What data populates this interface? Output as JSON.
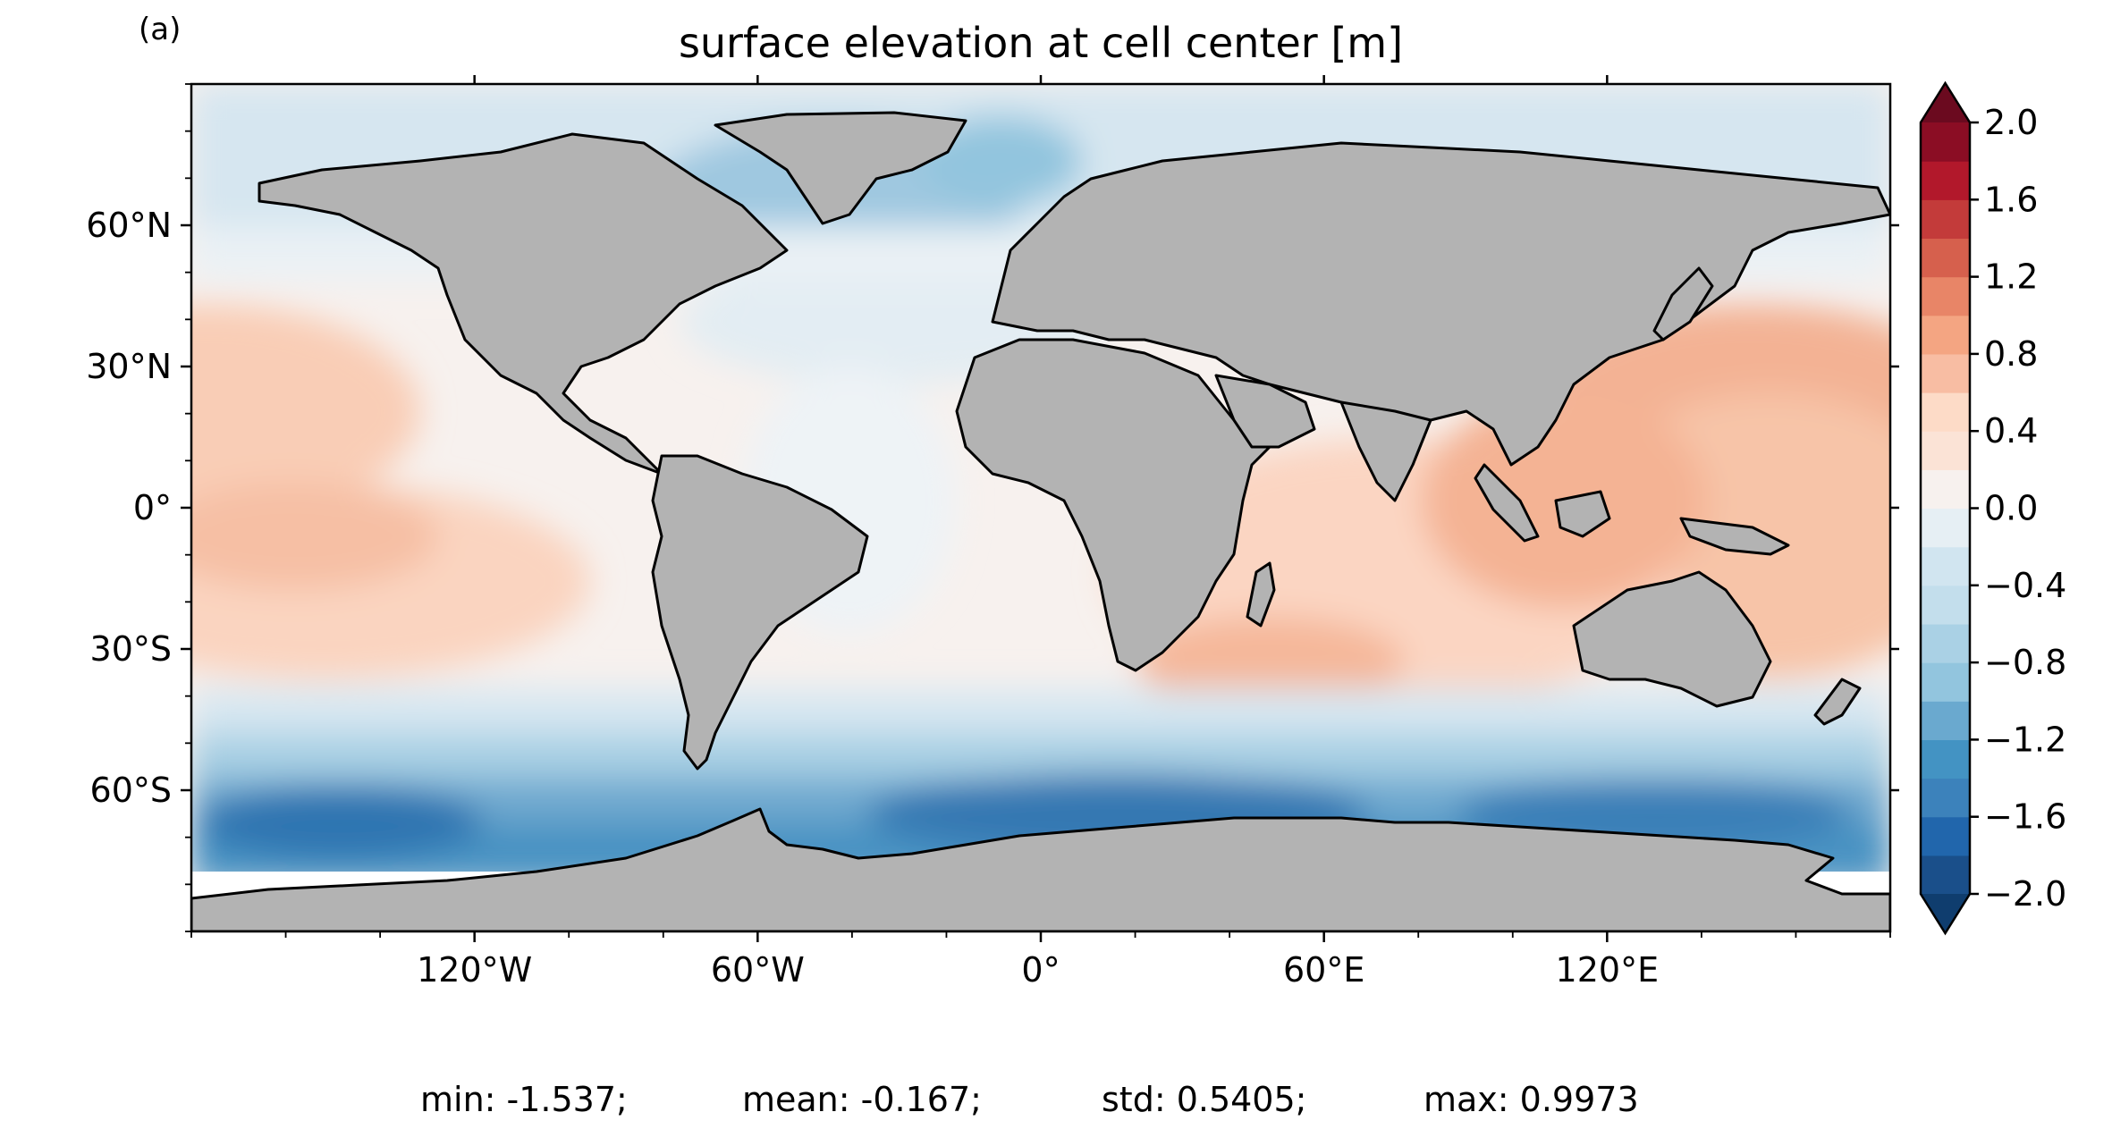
{
  "panel_label": "(a)",
  "title": "surface elevation at cell center [m]",
  "map": {
    "projection": "PlateCarree",
    "longitude_range": [
      -180,
      180
    ],
    "latitude_range": [
      -90,
      90
    ],
    "land_color": "#b3b3b3",
    "coastline_color": "#000000",
    "lon_ticks": [
      {
        "value": -120,
        "label": "120°W"
      },
      {
        "value": -60,
        "label": "60°W"
      },
      {
        "value": 0,
        "label": "0°"
      },
      {
        "value": 60,
        "label": "60°E"
      },
      {
        "value": 120,
        "label": "120°E"
      }
    ],
    "lat_ticks": [
      {
        "value": 60,
        "label": "60°N"
      },
      {
        "value": 30,
        "label": "30°N"
      },
      {
        "value": 0,
        "label": "0°"
      },
      {
        "value": -30,
        "label": "30°S"
      },
      {
        "value": -60,
        "label": "60°S"
      }
    ],
    "field_summary": {
      "variable": "surface elevation at cell center",
      "units": "m",
      "regions": [
        {
          "region": "Southern Ocean (Antarctic Circumpolar Current)",
          "value_range": [
            -1.6,
            -1.2
          ]
        },
        {
          "region": "Subpolar North Atlantic / Labrador Sea",
          "value_range": [
            -0.8,
            -0.4
          ]
        },
        {
          "region": "Arctic Ocean",
          "value_range": [
            -0.4,
            -0.2
          ]
        },
        {
          "region": "Subtropical North Pacific gyre",
          "value_range": [
            0.2,
            0.4
          ]
        },
        {
          "region": "Western Pacific warm pool / Kuroshio",
          "value_range": [
            0.6,
            0.9
          ]
        },
        {
          "region": "Indian Ocean",
          "value_range": [
            0.2,
            0.5
          ]
        },
        {
          "region": "Agulhas retroflection",
          "value_range": [
            0.4,
            0.6
          ]
        },
        {
          "region": "Tropical Atlantic",
          "value_range": [
            -0.2,
            0.0
          ]
        },
        {
          "region": "South Pacific subtropical gyre",
          "value_range": [
            0.2,
            0.4
          ]
        }
      ]
    }
  },
  "colorbar": {
    "colormap": "RdBu_r",
    "extend": "both",
    "levels": [
      -2.0,
      -1.8,
      -1.6,
      -1.4,
      -1.2,
      -1.0,
      -0.8,
      -0.6,
      -0.4,
      -0.2,
      0.0,
      0.2,
      0.4,
      0.6,
      0.8,
      1.0,
      1.2,
      1.4,
      1.6,
      1.8,
      2.0
    ],
    "colors": [
      "#1a4f8a",
      "#2166ac",
      "#3c82bb",
      "#4393c3",
      "#6aa9cf",
      "#92c5de",
      "#aad1e5",
      "#c3deec",
      "#d1e5f0",
      "#e6eff4",
      "#f7f1ee",
      "#fbe3d6",
      "#fddbc7",
      "#f8bda3",
      "#f4a582",
      "#e88567",
      "#d6604d",
      "#c33b3a",
      "#b2182b",
      "#8b0d24"
    ],
    "under_color": "#0f3d6e",
    "over_color": "#6b0a1f",
    "tick_labels": [
      {
        "value": 2.0,
        "label": "2.0"
      },
      {
        "value": 1.6,
        "label": "1.6"
      },
      {
        "value": 1.2,
        "label": "1.2"
      },
      {
        "value": 0.8,
        "label": "0.8"
      },
      {
        "value": 0.4,
        "label": "0.4"
      },
      {
        "value": 0.0,
        "label": "0.0"
      },
      {
        "value": -0.4,
        "label": "−0.4"
      },
      {
        "value": -0.8,
        "label": "−0.8"
      },
      {
        "value": -1.2,
        "label": "−1.2"
      },
      {
        "value": -1.6,
        "label": "−1.6"
      },
      {
        "value": -2.0,
        "label": "−2.0"
      }
    ]
  },
  "stats": {
    "min": "min: -1.537;",
    "mean": "mean: -0.167;",
    "std": "std: 0.5405;",
    "max": "max: 0.9973"
  }
}
